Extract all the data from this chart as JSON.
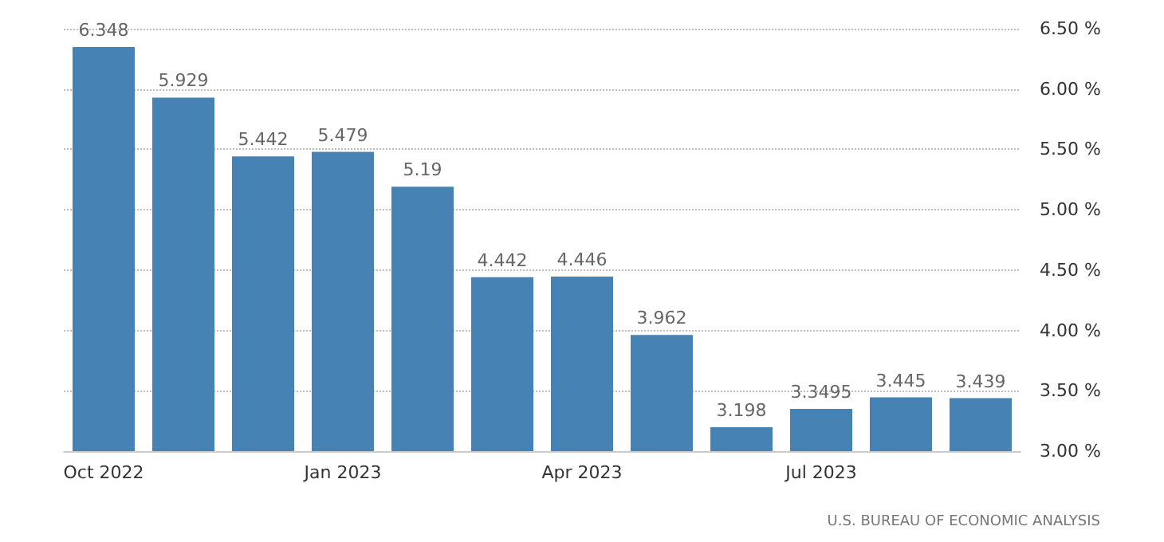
{
  "chart_data": {
    "type": "bar",
    "categories": [
      "Oct 2022",
      null,
      null,
      "Jan 2023",
      null,
      null,
      "Apr 2023",
      null,
      null,
      "Jul 2023",
      null,
      null
    ],
    "values": [
      6.348,
      5.929,
      5.442,
      5.479,
      5.19,
      4.442,
      4.446,
      3.962,
      3.198,
      3.3495,
      3.445,
      3.439
    ],
    "color": "#4682b4",
    "data_labels": true,
    "ylim": [
      3,
      6.5
    ],
    "yticks": [
      {
        "value": 3,
        "label": "3.00 %"
      },
      {
        "value": 3.5,
        "label": "3.50 %"
      },
      {
        "value": 4,
        "label": "4.00 %"
      },
      {
        "value": 4.5,
        "label": "4.50 %"
      },
      {
        "value": 5,
        "label": "5.00 %"
      },
      {
        "value": 5.5,
        "label": "5.50 %"
      },
      {
        "value": 6,
        "label": "6.00 %"
      },
      {
        "value": 6.5,
        "label": "6.50 %"
      }
    ],
    "grid": "y",
    "annotations": [
      "U.S. BUREAU OF ECONOMIC ANALYSIS"
    ]
  }
}
